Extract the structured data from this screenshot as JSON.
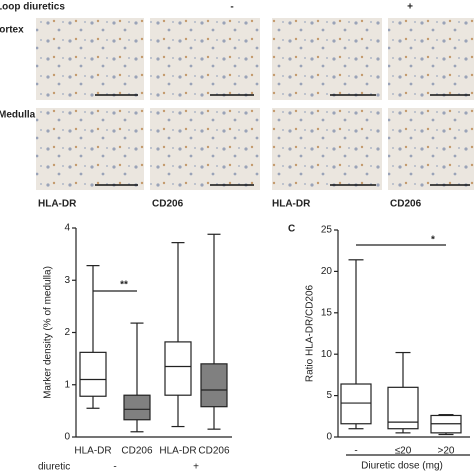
{
  "header": {
    "title": "Loop diuretics",
    "conditions": [
      "-",
      "+"
    ]
  },
  "rows": [
    "Cortex",
    "Medulla"
  ],
  "stain_labels": [
    "HLA-DR",
    "CD206",
    "HLA-DR",
    "CD206"
  ],
  "chart_data": [
    {
      "type": "box",
      "y_label": "Marker density (% of medulla)",
      "categories": [
        "HLA-DR",
        "CD206",
        "HLA-DR",
        "CD206"
      ],
      "group_label": "diuretic",
      "groups": [
        "-",
        "+"
      ],
      "colors": [
        "#ffffff",
        "#808080",
        "#ffffff",
        "#808080"
      ],
      "boxes": [
        {
          "low": 0.55,
          "q1": 0.78,
          "median": 1.1,
          "q3": 1.62,
          "high": 3.28
        },
        {
          "low": 0.1,
          "q1": 0.33,
          "median": 0.53,
          "q3": 0.8,
          "high": 2.18
        },
        {
          "low": 0.2,
          "q1": 0.8,
          "median": 1.35,
          "q3": 1.82,
          "high": 3.72
        },
        {
          "low": 0.15,
          "q1": 0.58,
          "median": 0.9,
          "q3": 1.4,
          "high": 3.88
        }
      ],
      "ylim": [
        0,
        4
      ],
      "yticks": [
        0,
        1,
        2,
        3,
        4
      ],
      "annotations": [
        "**"
      ]
    },
    {
      "type": "box",
      "panel": "C",
      "y_label": "Ratio HLA-DR/CD206",
      "x_label": "Diuretic dose (mg)",
      "categories": [
        "-",
        "≤20",
        ">20"
      ],
      "colors": [
        "#ffffff",
        "#ffffff",
        "#ffffff"
      ],
      "boxes": [
        {
          "low": 1.0,
          "q1": 1.6,
          "median": 4.1,
          "q3": 6.4,
          "high": 21.4
        },
        {
          "low": 0.5,
          "q1": 1.0,
          "median": 1.8,
          "q3": 6.0,
          "high": 10.2
        },
        {
          "low": 0.3,
          "q1": 0.5,
          "median": 1.6,
          "q3": 2.6,
          "high": 2.7
        }
      ],
      "ylim": [
        0,
        25
      ],
      "yticks": [
        0,
        5,
        10,
        15,
        20,
        25
      ],
      "annotations": [
        "*"
      ]
    }
  ]
}
